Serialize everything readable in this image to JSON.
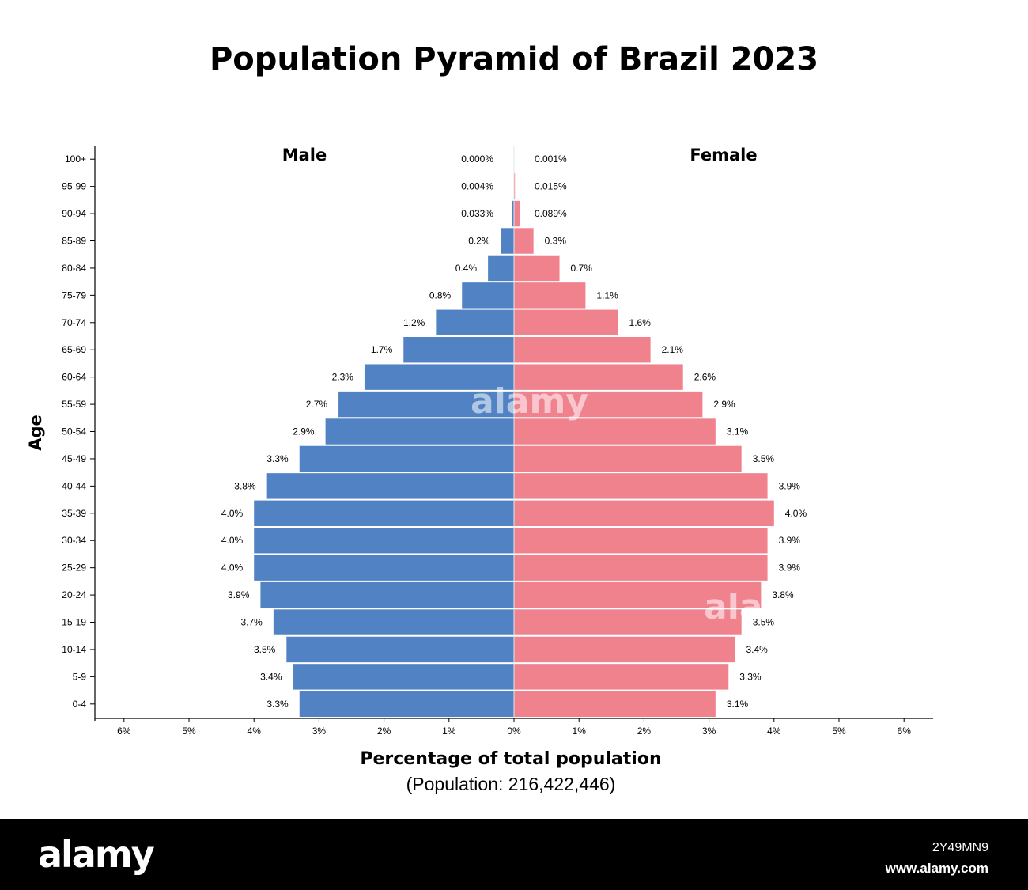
{
  "title": "Population Pyramid of Brazil  2023",
  "footer": {
    "logo": "alamy",
    "image_id": "2Y49MN9",
    "url": "www.alamy.com"
  },
  "watermark": "alamy",
  "chart_data": {
    "type": "bar",
    "orientation": "horizontal-pyramid",
    "ylabel": "Age",
    "xlabel": "Percentage of total population",
    "subtitle": "(Population: 216,422,446)",
    "left_label": "Male",
    "right_label": "Female",
    "xlim": [
      -6,
      6
    ],
    "x_ticks": [
      "6%",
      "5%",
      "4%",
      "3%",
      "2%",
      "1%",
      "0%",
      "1%",
      "2%",
      "3%",
      "4%",
      "5%",
      "6%"
    ],
    "categories": [
      "100+",
      "95-99",
      "90-94",
      "85-89",
      "80-84",
      "75-79",
      "70-74",
      "65-69",
      "60-64",
      "55-59",
      "50-54",
      "45-49",
      "40-44",
      "35-39",
      "30-34",
      "25-29",
      "20-24",
      "15-19",
      "10-14",
      "5-9",
      "0-4"
    ],
    "series": [
      {
        "name": "Male",
        "color": "#5183c4",
        "values": [
          0.0,
          0.004,
          0.033,
          0.2,
          0.4,
          0.8,
          1.2,
          1.7,
          2.3,
          2.7,
          2.9,
          3.3,
          3.8,
          4.0,
          4.0,
          4.0,
          3.9,
          3.7,
          3.5,
          3.4,
          3.3
        ],
        "labels": [
          "0.000%",
          "0.004%",
          "0.033%",
          "0.2%",
          "0.4%",
          "0.8%",
          "1.2%",
          "1.7%",
          "2.3%",
          "2.7%",
          "2.9%",
          "3.3%",
          "3.8%",
          "4.0%",
          "4.0%",
          "4.0%",
          "3.9%",
          "3.7%",
          "3.5%",
          "3.4%",
          "3.3%"
        ]
      },
      {
        "name": "Female",
        "color": "#f0828e",
        "values": [
          0.001,
          0.015,
          0.089,
          0.3,
          0.7,
          1.1,
          1.6,
          2.1,
          2.6,
          2.9,
          3.1,
          3.5,
          3.9,
          4.0,
          3.9,
          3.9,
          3.8,
          3.5,
          3.4,
          3.3,
          3.1
        ],
        "labels": [
          "0.001%",
          "0.015%",
          "0.089%",
          "0.3%",
          "0.7%",
          "1.1%",
          "1.6%",
          "2.1%",
          "2.6%",
          "2.9%",
          "3.1%",
          "3.5%",
          "3.9%",
          "4.0%",
          "3.9%",
          "3.9%",
          "3.8%",
          "3.5%",
          "3.4%",
          "3.3%",
          "3.1%"
        ]
      }
    ],
    "grid": false,
    "legend": "none"
  }
}
